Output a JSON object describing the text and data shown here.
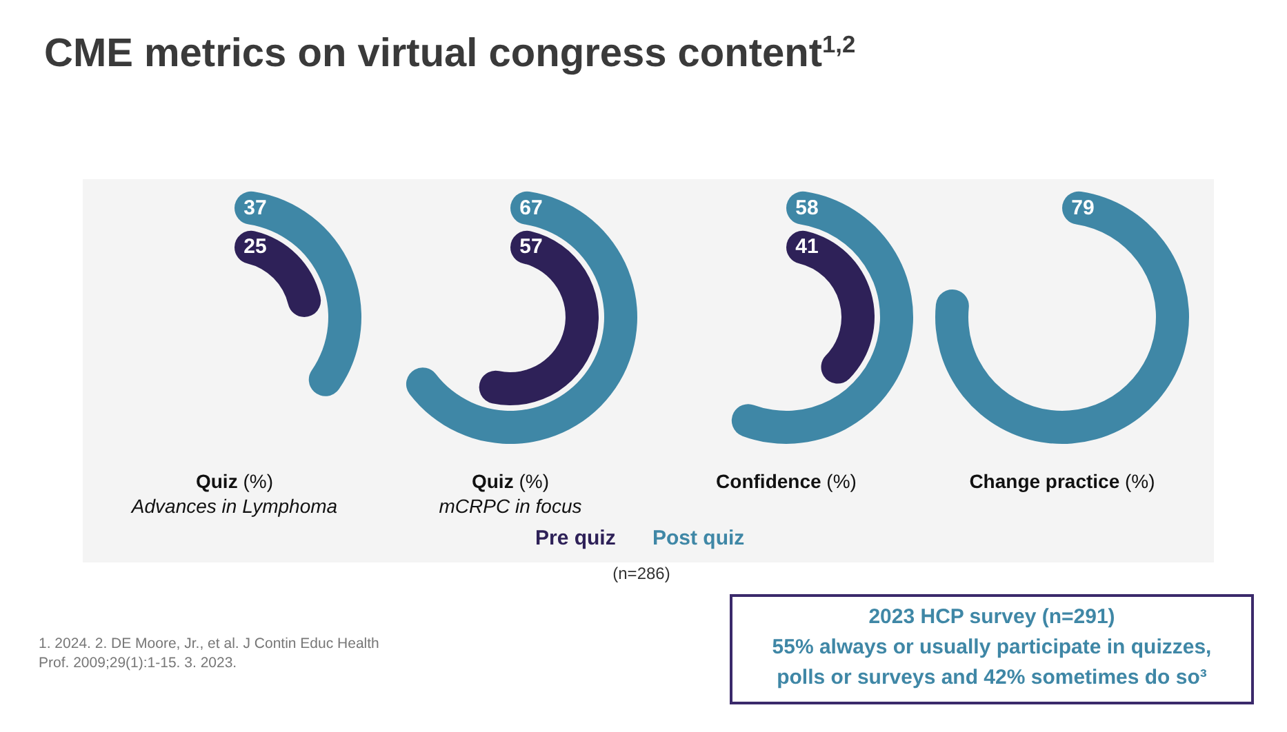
{
  "chart_data": {
    "type": "other",
    "title": "CME metrics on virtual congress content$^{1,2}$",
    "categories": [
      "Quiz (%)\nAdvances in Lymphoma",
      "Quiz (%)\nmCRPC in focus",
      "Confidence (%)",
      "Change practice (%)"
    ],
    "series": [
      {
        "name": "Pre quiz",
        "color": "#2e2158",
        "values": [
          25,
          57,
          41,
          null
        ]
      },
      {
        "name": "Post quiz",
        "color": "#3f87a6",
        "values": [
          37,
          67,
          58,
          79
        ]
      }
    ],
    "data_labels": true,
    "legend": "bottom",
    "annotations": [
      "(n=286)",
      "2023 HCP survey (n=291)\n55% always or usually participate in quizzes,\npolls or surveys and 42% sometimes do so³",
      "1. 2024. 2. DE Moore, Jr., et al. J Contin Educ Health\nProf. 2009;29(1):1-15. 3. 2023."
    ]
  }
}
